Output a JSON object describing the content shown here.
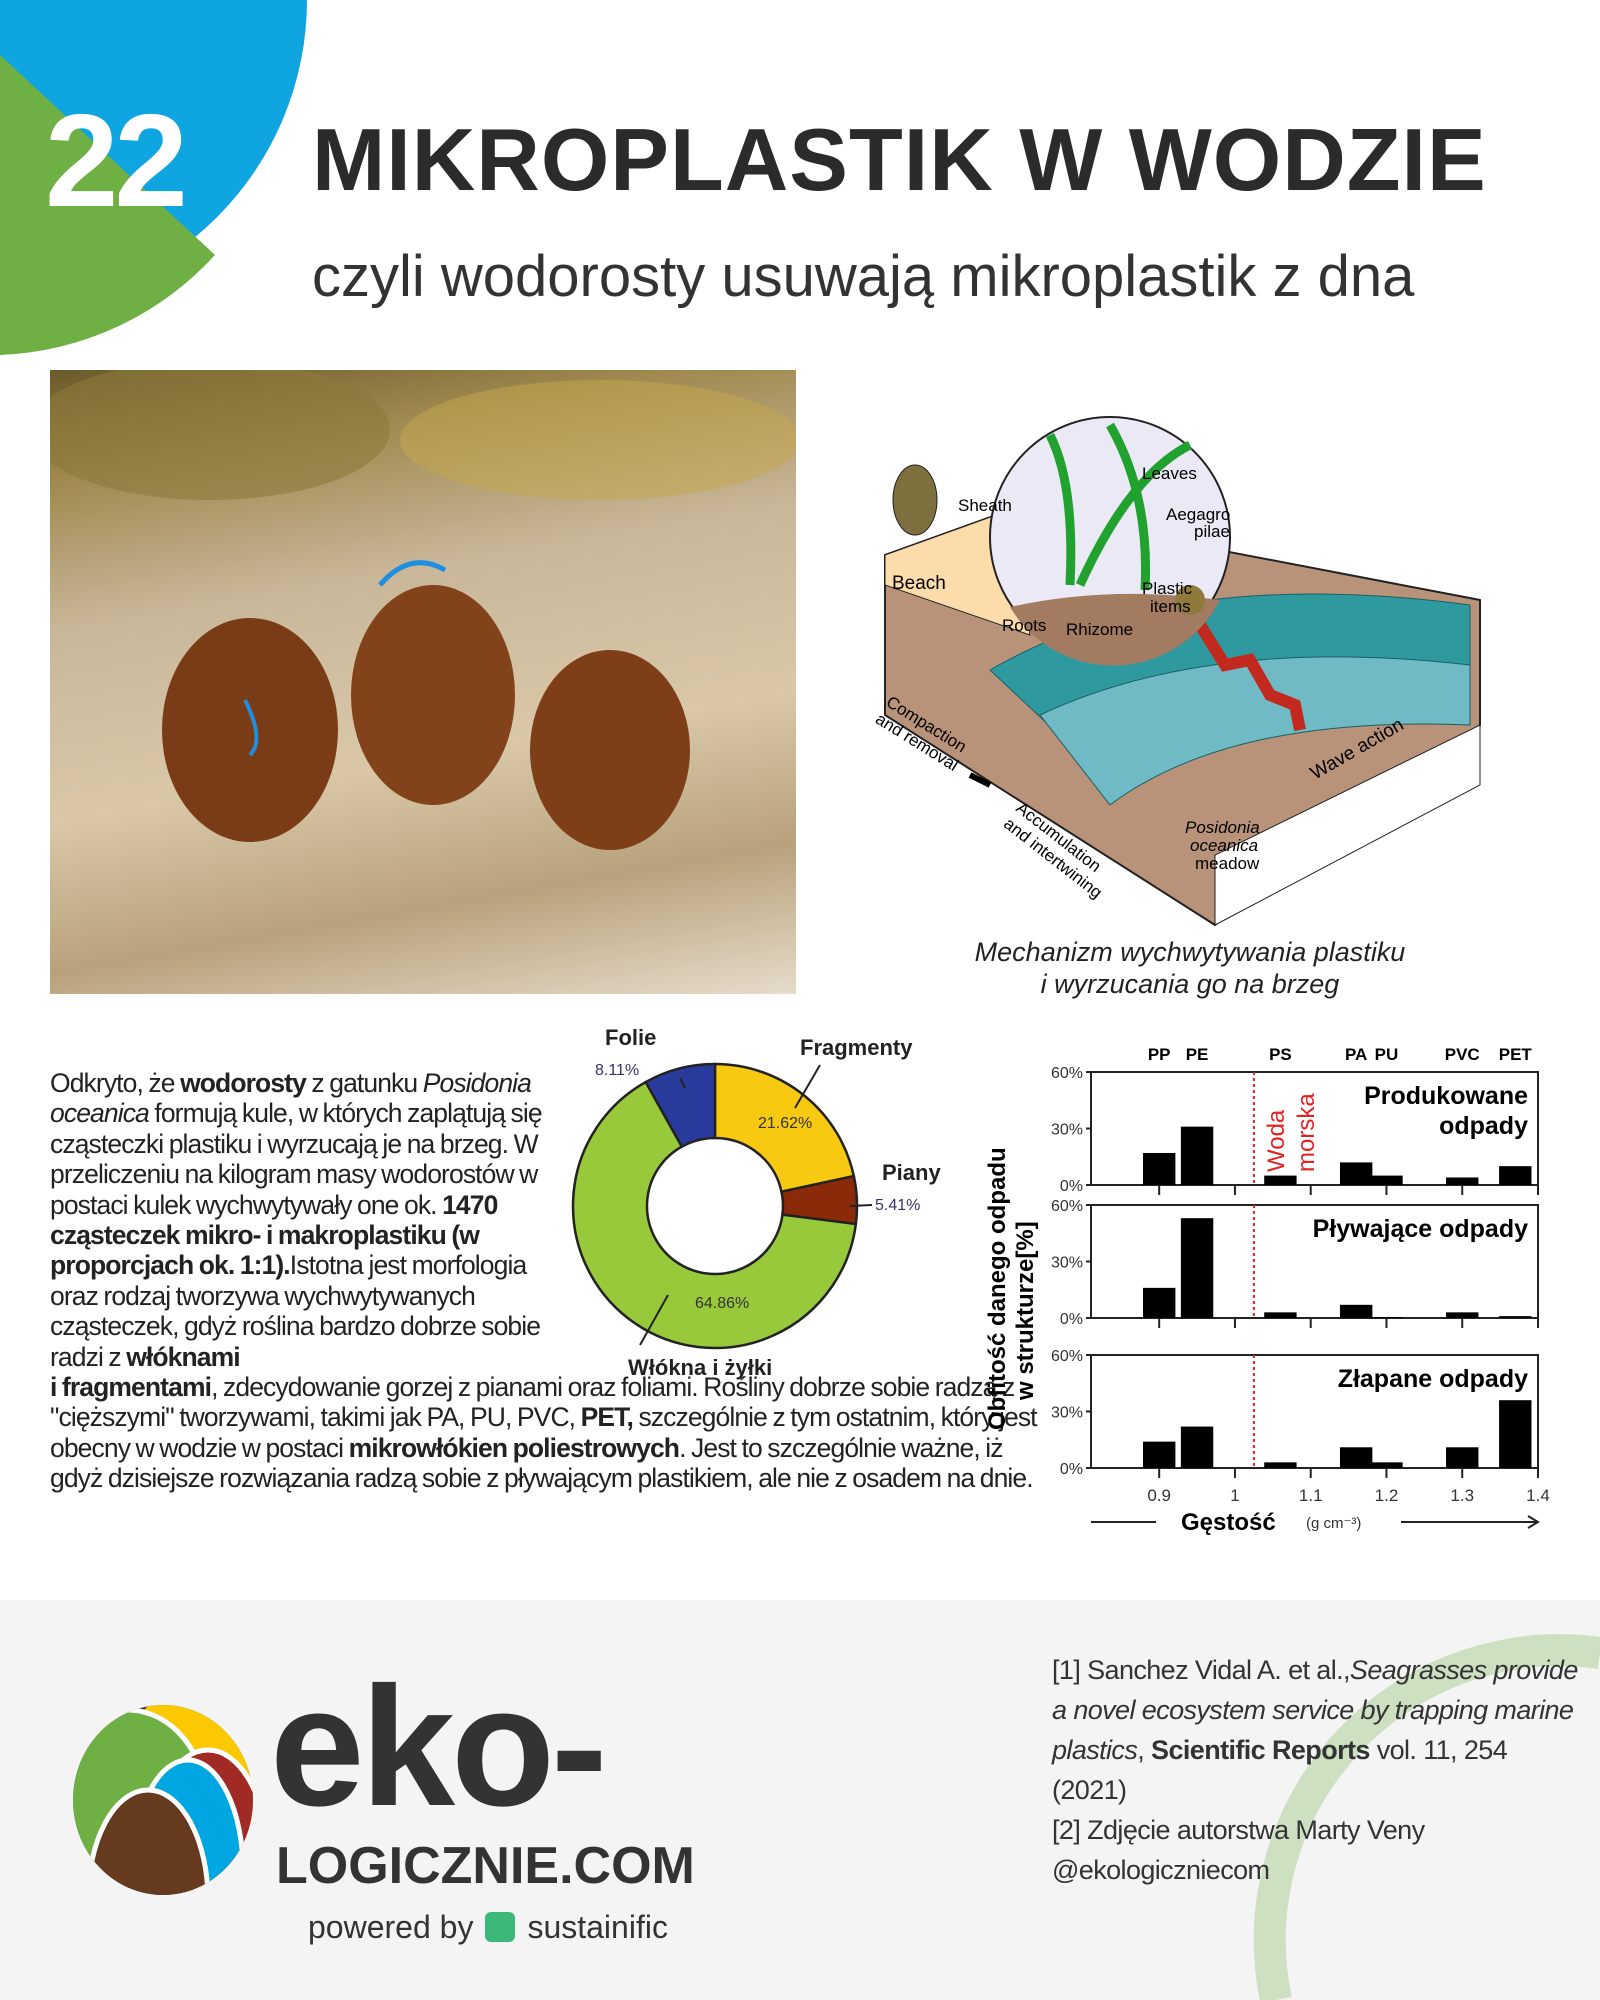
{
  "badge": {
    "number": "22",
    "colors": {
      "blue": "#0ea5e0",
      "green": "#6eb043"
    }
  },
  "header": {
    "title": "MIKROPLASTIK W WODZIE",
    "subtitle": "czyli  wodorosty usuwają mikroplastik z dna"
  },
  "diagram": {
    "labels": {
      "sheath": "Sheath",
      "leaves": "Leaves",
      "aegagro": "Aegagro",
      "pilae": "pilae",
      "beach": "Beach",
      "plastic": "Plastic",
      "items": "items",
      "roots": "Roots",
      "rhizome": "Rhizome",
      "compaction": "Compaction",
      "and_removal": "and removal",
      "accumulation": "Accumulation",
      "and_intertwining": "and intertwining",
      "wave_action": "Wave action",
      "posidonia": "Posidonia",
      "oceanica": "oceanica",
      "meadow": "meadow"
    },
    "caption_line1": "Mechanizm wychwytywania plastiku",
    "caption_line2": "i wyrzucania go na brzeg"
  },
  "article": {
    "p1a": "Odkryto, że ",
    "p1b": "wodorosty",
    "p1c": " z gatunku ",
    "p1d": "Posidonia oceanica",
    "p1e": " formują kule, w których zaplątują się cząsteczki plastiku i wyrzucają je na brzeg. W przeliczeniu na kilogram masy wodorostów w postaci kulek wychwytywały one ok. ",
    "p1f": "1470 cząsteczek mikro- i makroplastiku (w proporcjach ok. 1:1).",
    "p1g": "Istotna jest morfologia oraz rodzaj tworzywa wychwytywanych cząsteczek, gdyż roślina bardzo dobrze sobie radzi z ",
    "p1h": "włóknami",
    "p2a": "i fragmentami",
    "p2b": ", zdecydowanie gorzej z pianami oraz foliami. Rośliny dobrze sobie radzą z \"cięższymi\" tworzywami, takimi jak PA, PU, PVC, ",
    "p2c": "PET,",
    "p2d": " szczególnie z tym ostatnim, który jest obecny w wodzie w postaci ",
    "p2e": "mikrowłókien poliestrowych",
    "p2f": ". Jest to szczególnie ważne, iż gdyż dzisiejsze rozwiązania radzą sobie z pływającym plastikiem, ale nie z osadem na dnie."
  },
  "chart_data": [
    {
      "type": "pie",
      "donut": true,
      "slices": [
        {
          "name": "Fragmenty",
          "value": 21.62,
          "label": "21.62%",
          "color": "#f7c910"
        },
        {
          "name": "Piany",
          "value": 5.41,
          "label": "5.41%",
          "color": "#8b2a08"
        },
        {
          "name": "Włókna i żyłki",
          "value": 64.86,
          "label": "64.86%",
          "color": "#97c93a"
        },
        {
          "name": "Folie",
          "value": 8.11,
          "label": "8.11%",
          "color": "#283b9c"
        }
      ]
    },
    {
      "type": "bar",
      "ylabel_line1": "Obfitość danego odpadu",
      "ylabel_line2": "w strukturze[%]",
      "xlabel": "Gęstość",
      "xunit": "(g cm⁻³)",
      "xlim": [
        0.81,
        1.4
      ],
      "ylim": [
        0,
        60
      ],
      "xticks": [
        "0.9",
        "1",
        "1.1",
        "1.2",
        "1.3",
        "1.4"
      ],
      "yticks": [
        "0%",
        "30%",
        "60%"
      ],
      "polymers": [
        {
          "name": "PP",
          "x": 0.9
        },
        {
          "name": "PE",
          "x": 0.95
        },
        {
          "name": "PS",
          "x": 1.06
        },
        {
          "name": "PA",
          "x": 1.16
        },
        {
          "name": "PU",
          "x": 1.2
        },
        {
          "name": "PVC",
          "x": 1.3
        },
        {
          "name": "PET",
          "x": 1.37
        }
      ],
      "seawater": {
        "x": 1.025,
        "line1": "Woda",
        "line2": "morska",
        "color": "#e52222"
      },
      "panels": [
        {
          "title_line1": "Produkowane",
          "title_line2": "odpady",
          "values": [
            17,
            31,
            5,
            12,
            5,
            4,
            10
          ]
        },
        {
          "title_line1": "Pływające odpady",
          "title_line2": "",
          "values": [
            16,
            53,
            3,
            7,
            0.5,
            3,
            1
          ]
        },
        {
          "title_line1": "Złapane odpady",
          "title_line2": "",
          "values": [
            14,
            22,
            3,
            11,
            3,
            11,
            36
          ]
        }
      ]
    }
  ],
  "footer": {
    "logo_top": "eko-",
    "logo_bottom": "LOGICZNIE.COM",
    "powered_by": "powered by",
    "sustainific": "sustainific",
    "ref1a": "[1] Sanchez Vidal A. et al.,",
    "ref1b": "Seagrasses provide a novel ecosystem service by trapping marine plastics",
    "ref1c": ", ",
    "ref1d": "Scientific Reports",
    "ref1e": " vol. 11, 254 (2021)",
    "ref2": "[2] Zdjęcie autorstwa Marty Veny",
    "handle": "@ekologiczniecom"
  }
}
